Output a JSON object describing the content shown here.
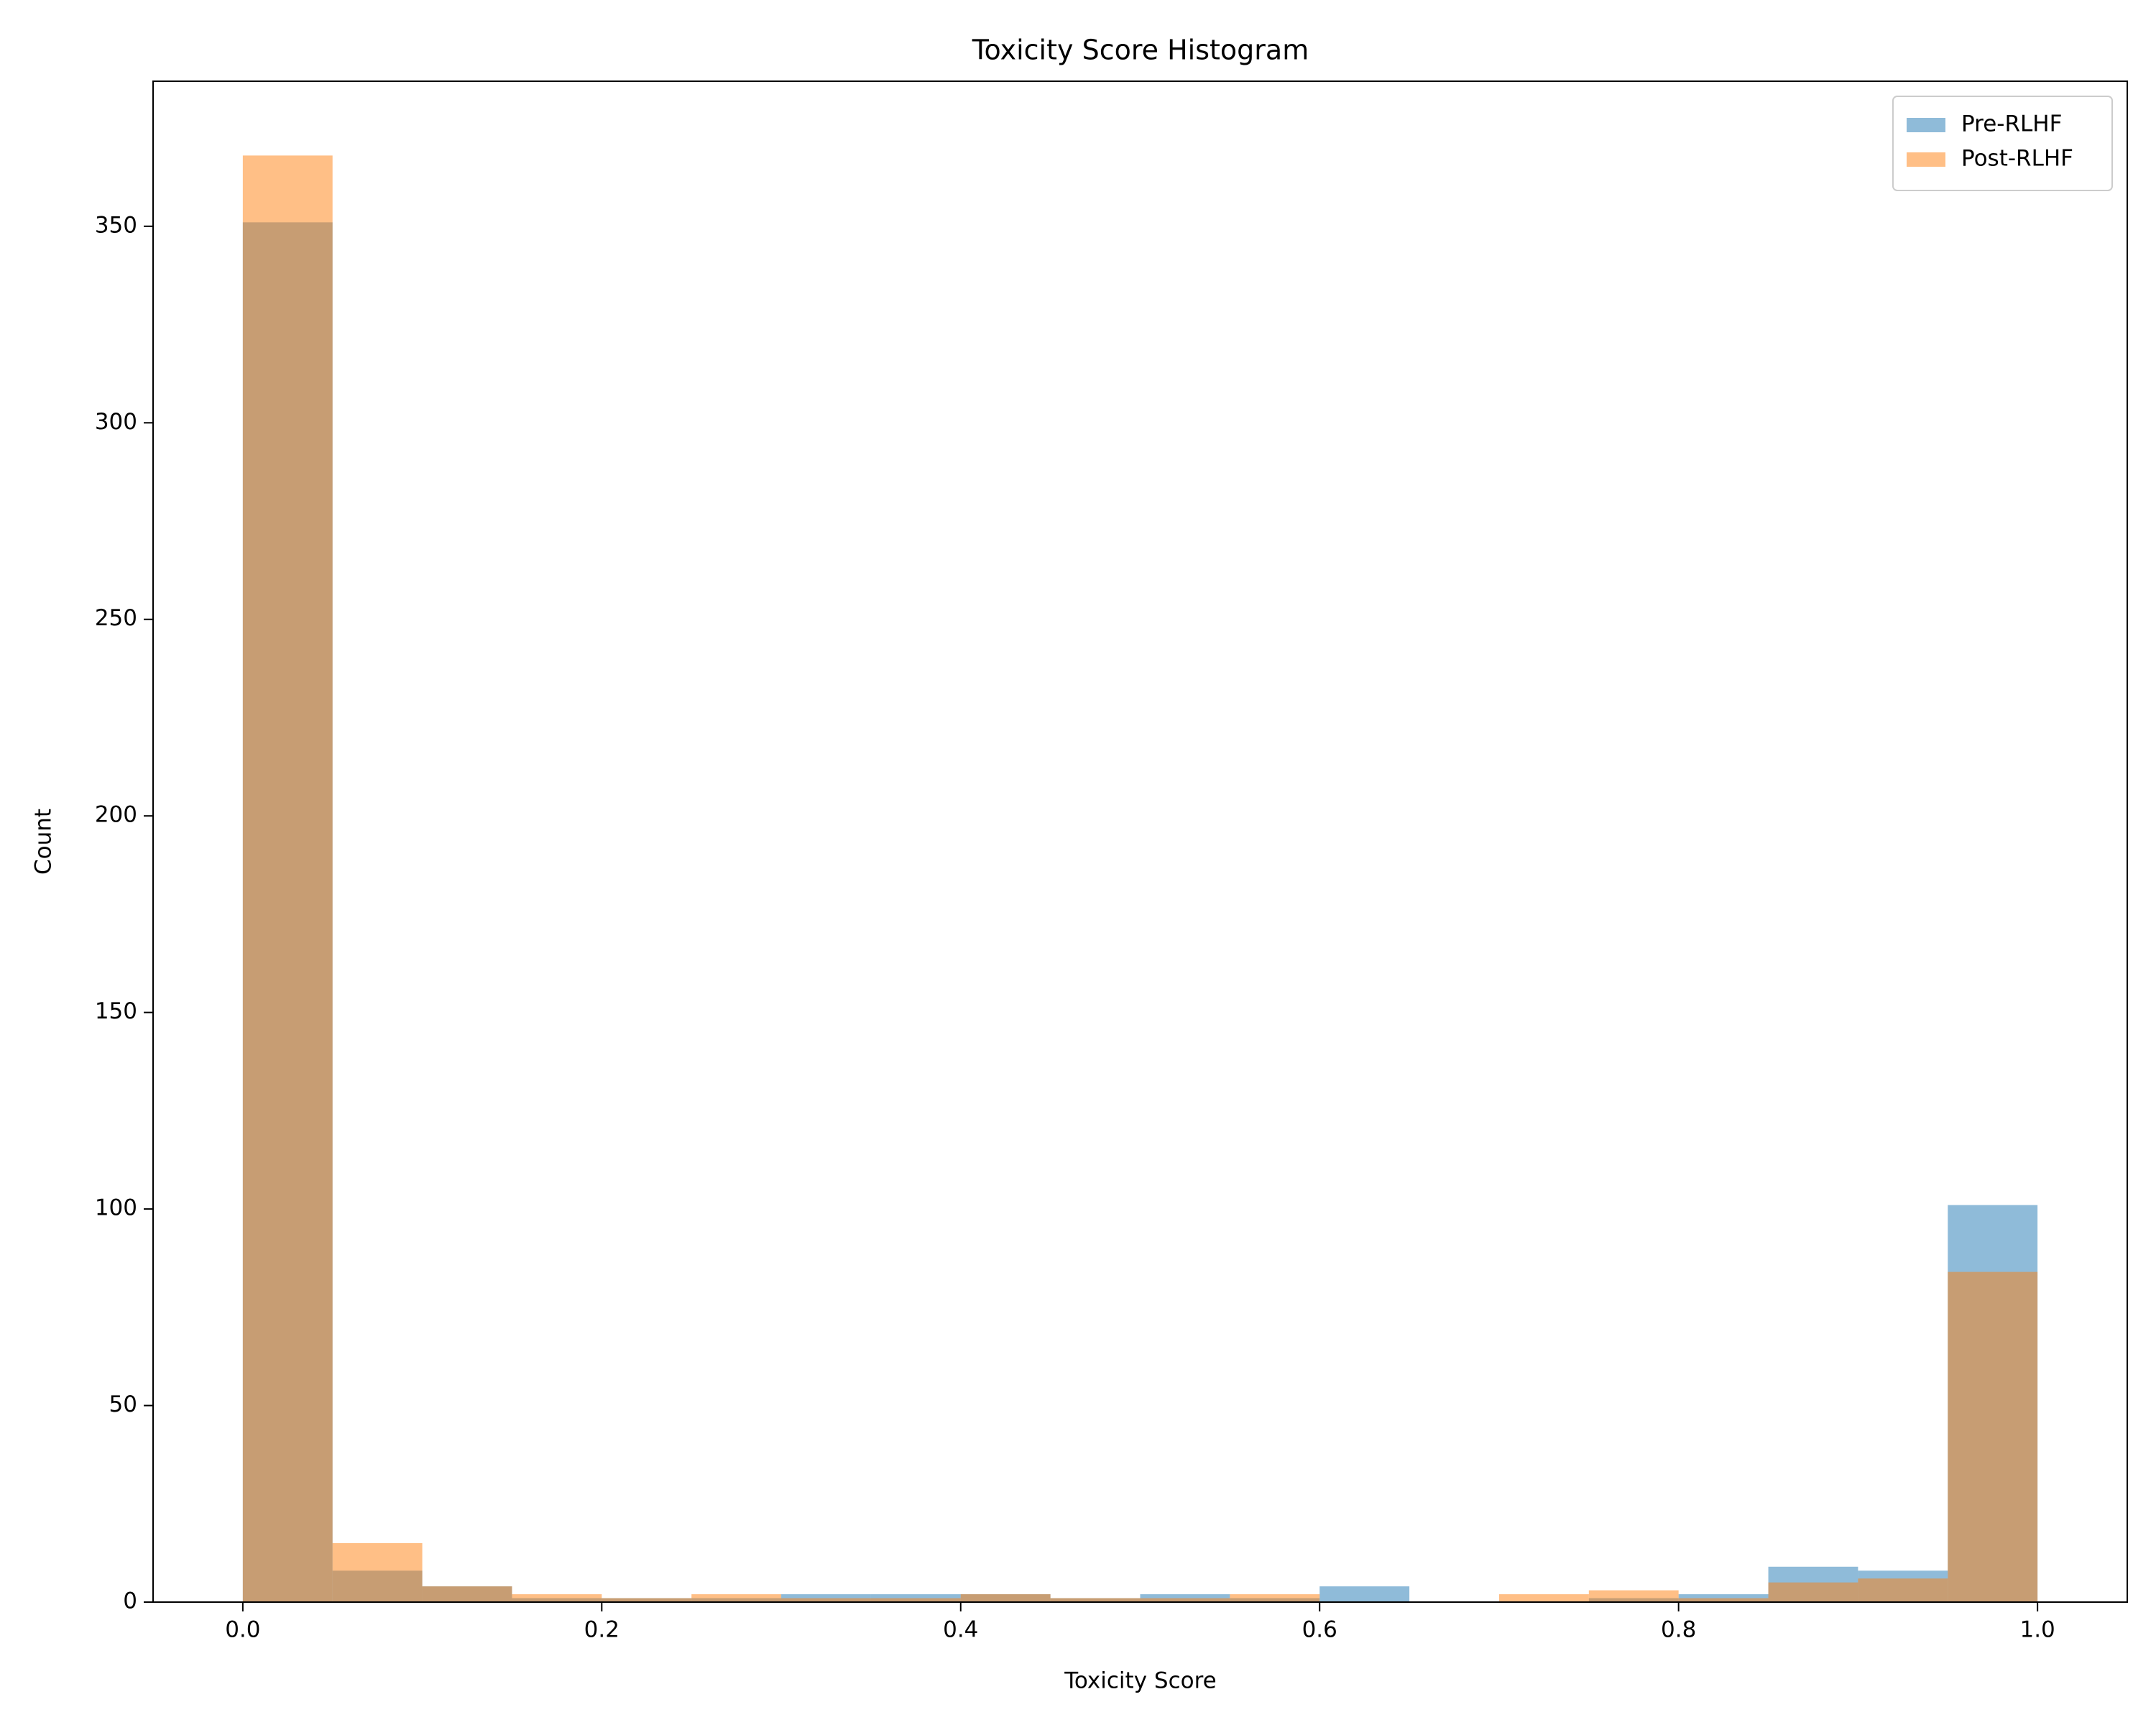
{
  "chart_data": {
    "type": "histogram",
    "title": "Toxicity Score Histogram",
    "x_label": "Toxicity Score",
    "y_label": "Count",
    "bins": [
      0,
      0.05,
      0.1,
      0.15,
      0.2,
      0.25,
      0.3,
      0.35,
      0.4,
      0.45,
      0.5,
      0.55,
      0.6,
      0.65,
      0.7,
      0.75,
      0.8,
      0.85,
      0.9,
      0.95,
      1
    ],
    "series": [
      {
        "name": "Pre-RLHF",
        "color": "#1f77b4",
        "opacity": 0.5,
        "values": [
          351,
          8,
          4,
          1,
          1,
          1,
          2,
          2,
          2,
          1,
          2,
          1,
          4,
          0,
          0,
          1,
          2,
          9,
          8,
          101
        ]
      },
      {
        "name": "Post-RLHF",
        "color": "#ff7f0e",
        "opacity": 0.5,
        "values": [
          368,
          15,
          4,
          2,
          1,
          2,
          1,
          1,
          2,
          1,
          1,
          2,
          0,
          0,
          2,
          3,
          1,
          5,
          6,
          84
        ]
      }
    ],
    "xlim": [
      -0.05,
      1.05
    ],
    "ylim": [
      0,
      386.9
    ],
    "xticks": [
      {
        "value": 0,
        "label": "0.0"
      },
      0.2,
      0.4,
      0.6,
      0.8,
      {
        "value": 1,
        "label": "1.0"
      }
    ],
    "yticks": [
      0,
      50,
      100,
      150,
      200,
      250,
      300,
      350
    ],
    "legend": "upper right"
  }
}
